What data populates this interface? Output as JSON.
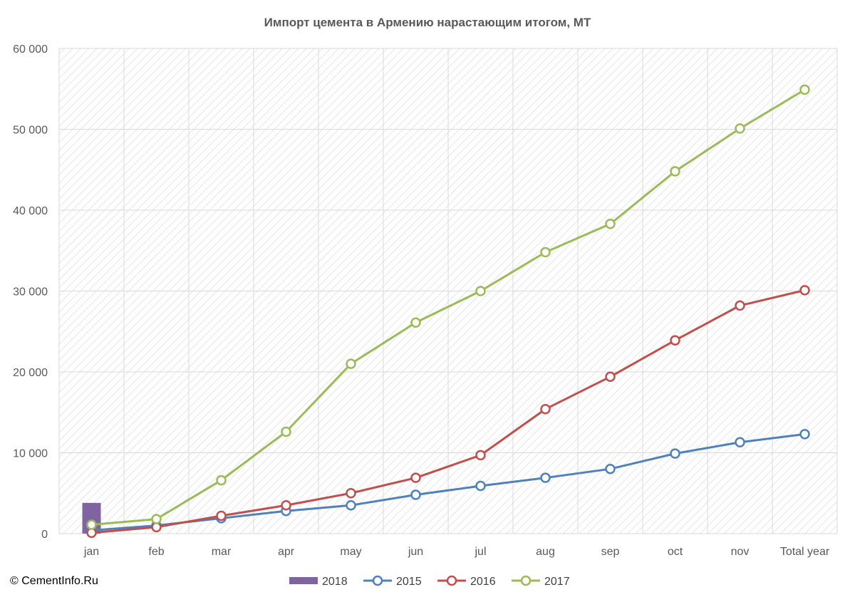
{
  "chart_data": {
    "type": "line",
    "title": "Импорт цемента в Армению нарастающим итогом, МТ",
    "categories": [
      "jan",
      "feb",
      "mar",
      "apr",
      "may",
      "jun",
      "jul",
      "aug",
      "sep",
      "oct",
      "nov",
      "Total year"
    ],
    "ylim": [
      0,
      60000
    ],
    "yticks": [
      0,
      10000,
      20000,
      30000,
      40000,
      50000,
      60000
    ],
    "ytick_labels": [
      "0",
      "10 000",
      "20 000",
      "30 000",
      "40 000",
      "50 000",
      "60 000"
    ],
    "grid": true,
    "legend_position": "bottom",
    "series": [
      {
        "name": "2018",
        "kind": "bar",
        "color": "#8064A2",
        "values": [
          3800,
          null,
          null,
          null,
          null,
          null,
          null,
          null,
          null,
          null,
          null,
          null
        ]
      },
      {
        "name": "2015",
        "kind": "line",
        "color": "#4F81BD",
        "values": [
          400,
          1000,
          1900,
          2800,
          3500,
          4800,
          5900,
          6900,
          8000,
          9900,
          11300,
          12300
        ]
      },
      {
        "name": "2016",
        "kind": "line",
        "color": "#C0504D",
        "values": [
          100,
          800,
          2200,
          3500,
          5000,
          6900,
          9700,
          15400,
          19400,
          23900,
          28200,
          30100
        ]
      },
      {
        "name": "2017",
        "kind": "line",
        "color": "#9BBB59",
        "values": [
          1100,
          1800,
          6600,
          12600,
          21000,
          26100,
          30000,
          34800,
          38300,
          44800,
          50100,
          54900
        ]
      }
    ]
  },
  "footer": {
    "credit": "© CementInfo.Ru"
  }
}
